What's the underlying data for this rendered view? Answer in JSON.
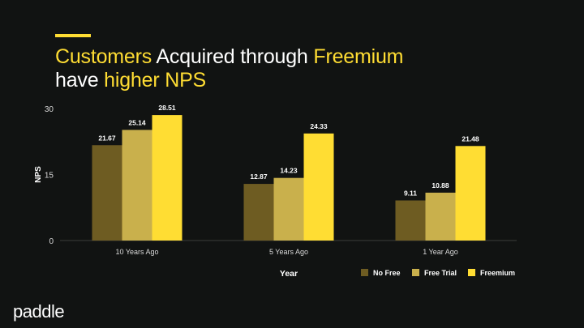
{
  "slide": {
    "title_line1": [
      "Customers",
      " Acquired through ",
      "Freemium"
    ],
    "title_line2": [
      "have ",
      "higher NPS"
    ]
  },
  "brand": {
    "logo_text": "paddle"
  },
  "colors": {
    "background": "#111312",
    "accent": "#ffdd33",
    "no_free": "#6e5c22",
    "free_trial": "#c9b04c",
    "freemium": "#ffdd33"
  },
  "chart_data": {
    "type": "bar",
    "categories": [
      "10 Years Ago",
      "5 Years Ago",
      "1 Year Ago"
    ],
    "series": [
      {
        "name": "No Free",
        "values": [
          21.67,
          12.87,
          9.11
        ]
      },
      {
        "name": "Free Trial",
        "values": [
          25.14,
          14.23,
          10.88
        ]
      },
      {
        "name": "Freemium",
        "values": [
          28.51,
          24.33,
          21.48
        ]
      }
    ],
    "value_labels": [
      [
        "21.67",
        "12.87",
        "9.11"
      ],
      [
        "25.14",
        "14.23",
        "10.88"
      ],
      [
        "28.51",
        "24.33",
        "21.48"
      ]
    ],
    "xlabel": "Year",
    "ylabel": "NPS",
    "ylim": [
      0,
      30
    ],
    "yticks": [
      "0",
      "15",
      "30"
    ],
    "legend_position": "bottom-right",
    "grid": false
  }
}
